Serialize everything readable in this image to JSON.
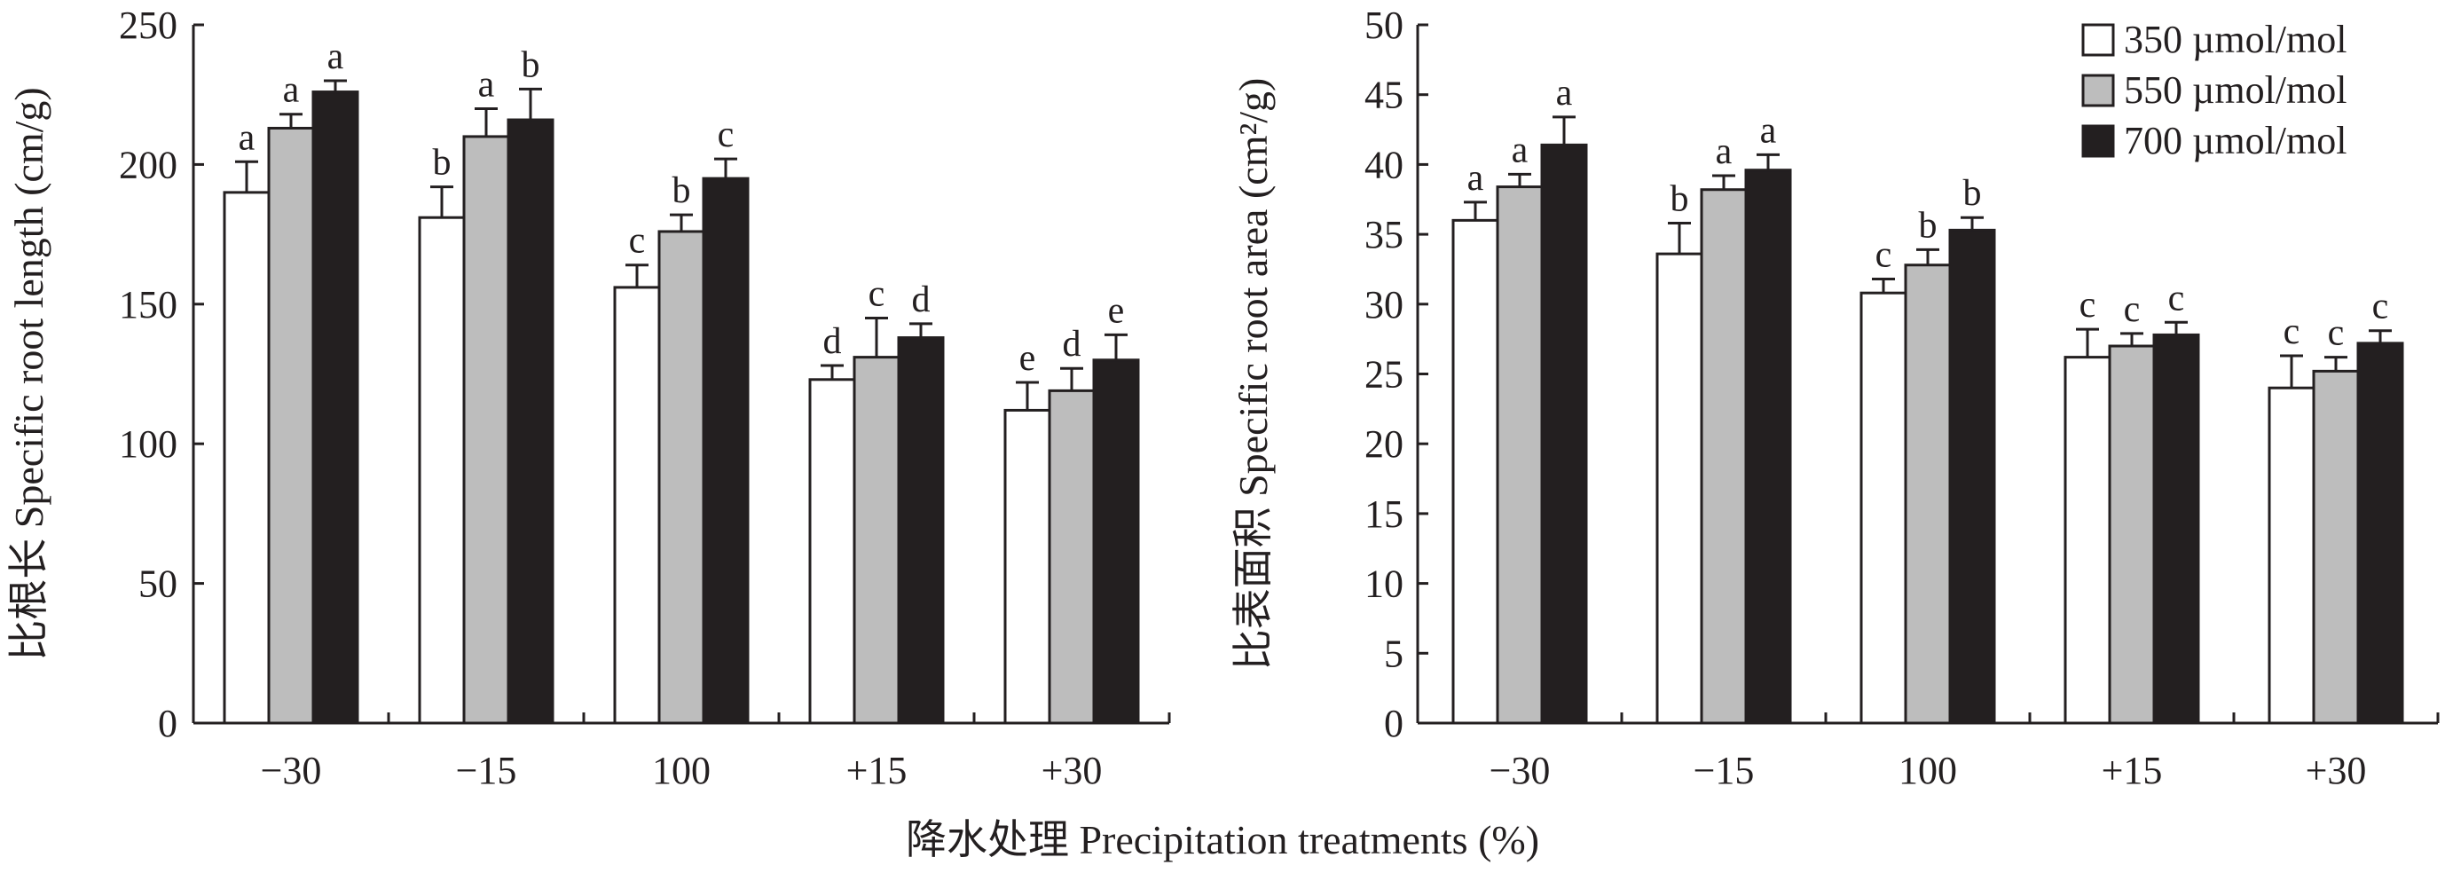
{
  "xlabel": "降水处理 Precipitation treatments (%)",
  "colors": {
    "350 µmol/mol": "#ffffff",
    "550 µmol/mol": "#bdbdbd",
    "700 µmol/mol": "#231f20",
    "stroke": "#231f20"
  },
  "legend": {
    "position": "top-right of right panel",
    "entries": [
      "350 µmol/mol",
      "550 µmol/mol",
      "700 µmol/mol"
    ]
  },
  "chart_data": [
    {
      "type": "bar",
      "title": "",
      "ylabel": "比根长 Specific root length (cm/g)",
      "ylim": [
        0,
        250
      ],
      "yticks": [
        0,
        50,
        100,
        150,
        200,
        250
      ],
      "categories": [
        "−30",
        "−15",
        "100",
        "+15",
        "+30"
      ],
      "grid": false,
      "series": [
        {
          "name": "350 µmol/mol",
          "values": [
            190,
            181,
            156,
            123,
            112
          ],
          "errors": [
            11,
            11,
            8,
            5,
            10
          ],
          "labels": [
            "a",
            "b",
            "c",
            "d",
            "e"
          ]
        },
        {
          "name": "550 µmol/mol",
          "values": [
            213,
            210,
            176,
            131,
            119
          ],
          "errors": [
            5,
            10,
            6,
            14,
            8
          ],
          "labels": [
            "a",
            "a",
            "b",
            "c",
            "d"
          ]
        },
        {
          "name": "700 µmol/mol",
          "values": [
            226,
            216,
            195,
            138,
            130
          ],
          "errors": [
            4,
            11,
            7,
            5,
            9
          ],
          "labels": [
            "a",
            "b",
            "c",
            "d",
            "e"
          ]
        }
      ]
    },
    {
      "type": "bar",
      "title": "",
      "ylabel": "比表面积 Specific root area (cm²/g)",
      "ylim": [
        0,
        50
      ],
      "yticks": [
        0,
        5,
        10,
        15,
        20,
        25,
        30,
        35,
        40,
        45,
        50
      ],
      "categories": [
        "−30",
        "−15",
        "100",
        "+15",
        "+30"
      ],
      "grid": false,
      "series": [
        {
          "name": "350 µmol/mol",
          "values": [
            36,
            33.6,
            30.8,
            26.2,
            24.0
          ],
          "errors": [
            1.3,
            2.2,
            1.0,
            2.0,
            2.3
          ],
          "labels": [
            "a",
            "b",
            "c",
            "c",
            "c"
          ]
        },
        {
          "name": "550 µmol/mol",
          "values": [
            38.4,
            38.2,
            32.8,
            27.0,
            25.2
          ],
          "errors": [
            0.9,
            1.0,
            1.1,
            0.9,
            1.0
          ],
          "labels": [
            "a",
            "a",
            "b",
            "c",
            "c"
          ]
        },
        {
          "name": "700 µmol/mol",
          "values": [
            41.4,
            39.6,
            35.3,
            27.8,
            27.2
          ],
          "errors": [
            2.0,
            1.1,
            0.9,
            0.9,
            0.9
          ],
          "labels": [
            "a",
            "a",
            "b",
            "c",
            "c"
          ]
        }
      ]
    }
  ]
}
